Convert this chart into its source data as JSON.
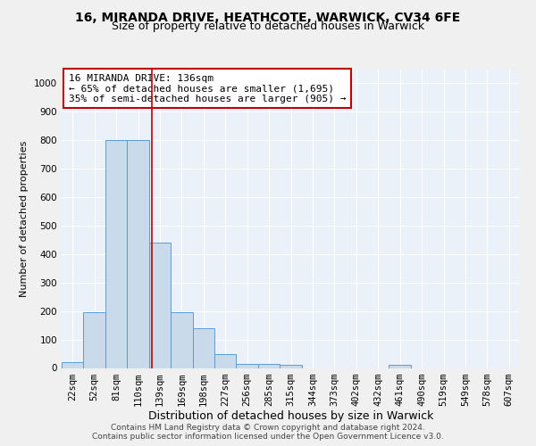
{
  "title1": "16, MIRANDA DRIVE, HEATHCOTE, WARWICK, CV34 6FE",
  "title2": "Size of property relative to detached houses in Warwick",
  "xlabel": "Distribution of detached houses by size in Warwick",
  "ylabel": "Number of detached properties",
  "footnote1": "Contains HM Land Registry data © Crown copyright and database right 2024.",
  "footnote2": "Contains public sector information licensed under the Open Government Licence v3.0.",
  "bar_labels": [
    "22sqm",
    "52sqm",
    "81sqm",
    "110sqm",
    "139sqm",
    "169sqm",
    "198sqm",
    "227sqm",
    "256sqm",
    "285sqm",
    "315sqm",
    "344sqm",
    "373sqm",
    "402sqm",
    "432sqm",
    "461sqm",
    "490sqm",
    "519sqm",
    "549sqm",
    "578sqm",
    "607sqm"
  ],
  "bar_heights": [
    20,
    195,
    800,
    800,
    440,
    195,
    140,
    50,
    15,
    15,
    10,
    0,
    0,
    0,
    0,
    10,
    0,
    0,
    0,
    0,
    0
  ],
  "bar_color": "#c9daea",
  "bar_edge_color": "#5b9bd5",
  "bar_width": 1.0,
  "vline_x": 3.63,
  "vline_color": "#c00000",
  "annotation_text": "16 MIRANDA DRIVE: 136sqm\n← 65% of detached houses are smaller (1,695)\n35% of semi-detached houses are larger (905) →",
  "annotation_box_color": "#c00000",
  "ylim": [
    0,
    1050
  ],
  "yticks": [
    0,
    100,
    200,
    300,
    400,
    500,
    600,
    700,
    800,
    900,
    1000
  ],
  "bg_color": "#eaf1f8",
  "grid_color": "#ffffff",
  "title1_fontsize": 10,
  "title2_fontsize": 9,
  "xlabel_fontsize": 9,
  "ylabel_fontsize": 8,
  "tick_fontsize": 7.5,
  "annotation_fontsize": 8,
  "footnote_fontsize": 6.5
}
